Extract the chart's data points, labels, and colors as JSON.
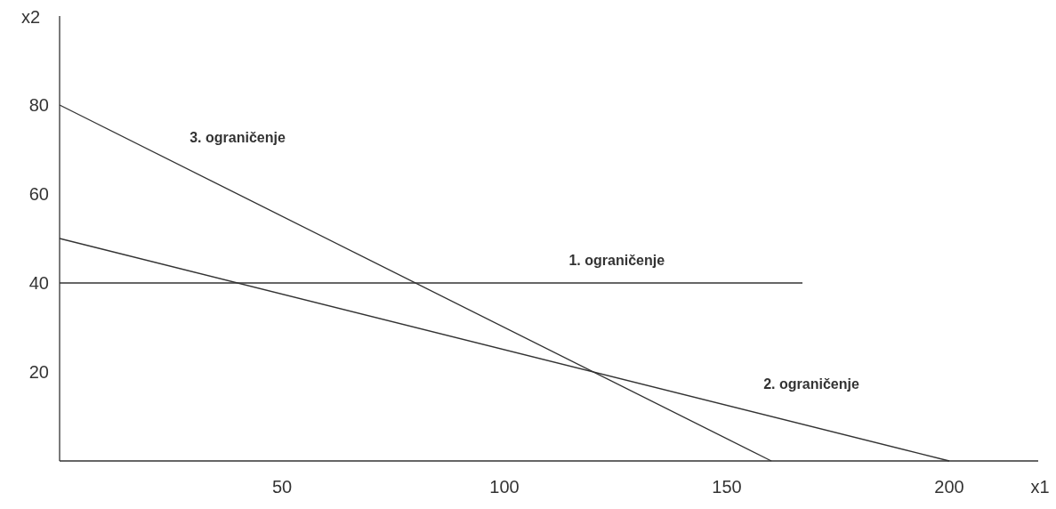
{
  "chart_data": {
    "type": "line",
    "xlabel": "x1",
    "ylabel": "x2",
    "xlim": [
      0,
      220
    ],
    "ylim": [
      0,
      100
    ],
    "xticks": [
      50,
      100,
      150,
      200
    ],
    "yticks": [
      20,
      40,
      60,
      80
    ],
    "grid": false,
    "marker": "none",
    "line_style": "solid",
    "series": [
      {
        "name": "1. ograničenje",
        "color": "#333333",
        "x": [
          0,
          167
        ],
        "values": [
          40,
          40
        ]
      },
      {
        "name": "2. ograničenje",
        "color": "#333333",
        "x": [
          0,
          200
        ],
        "values": [
          50,
          0
        ]
      },
      {
        "name": "3. ograničenje",
        "color": "#333333",
        "x": [
          0,
          160
        ],
        "values": [
          80,
          0
        ]
      }
    ]
  }
}
